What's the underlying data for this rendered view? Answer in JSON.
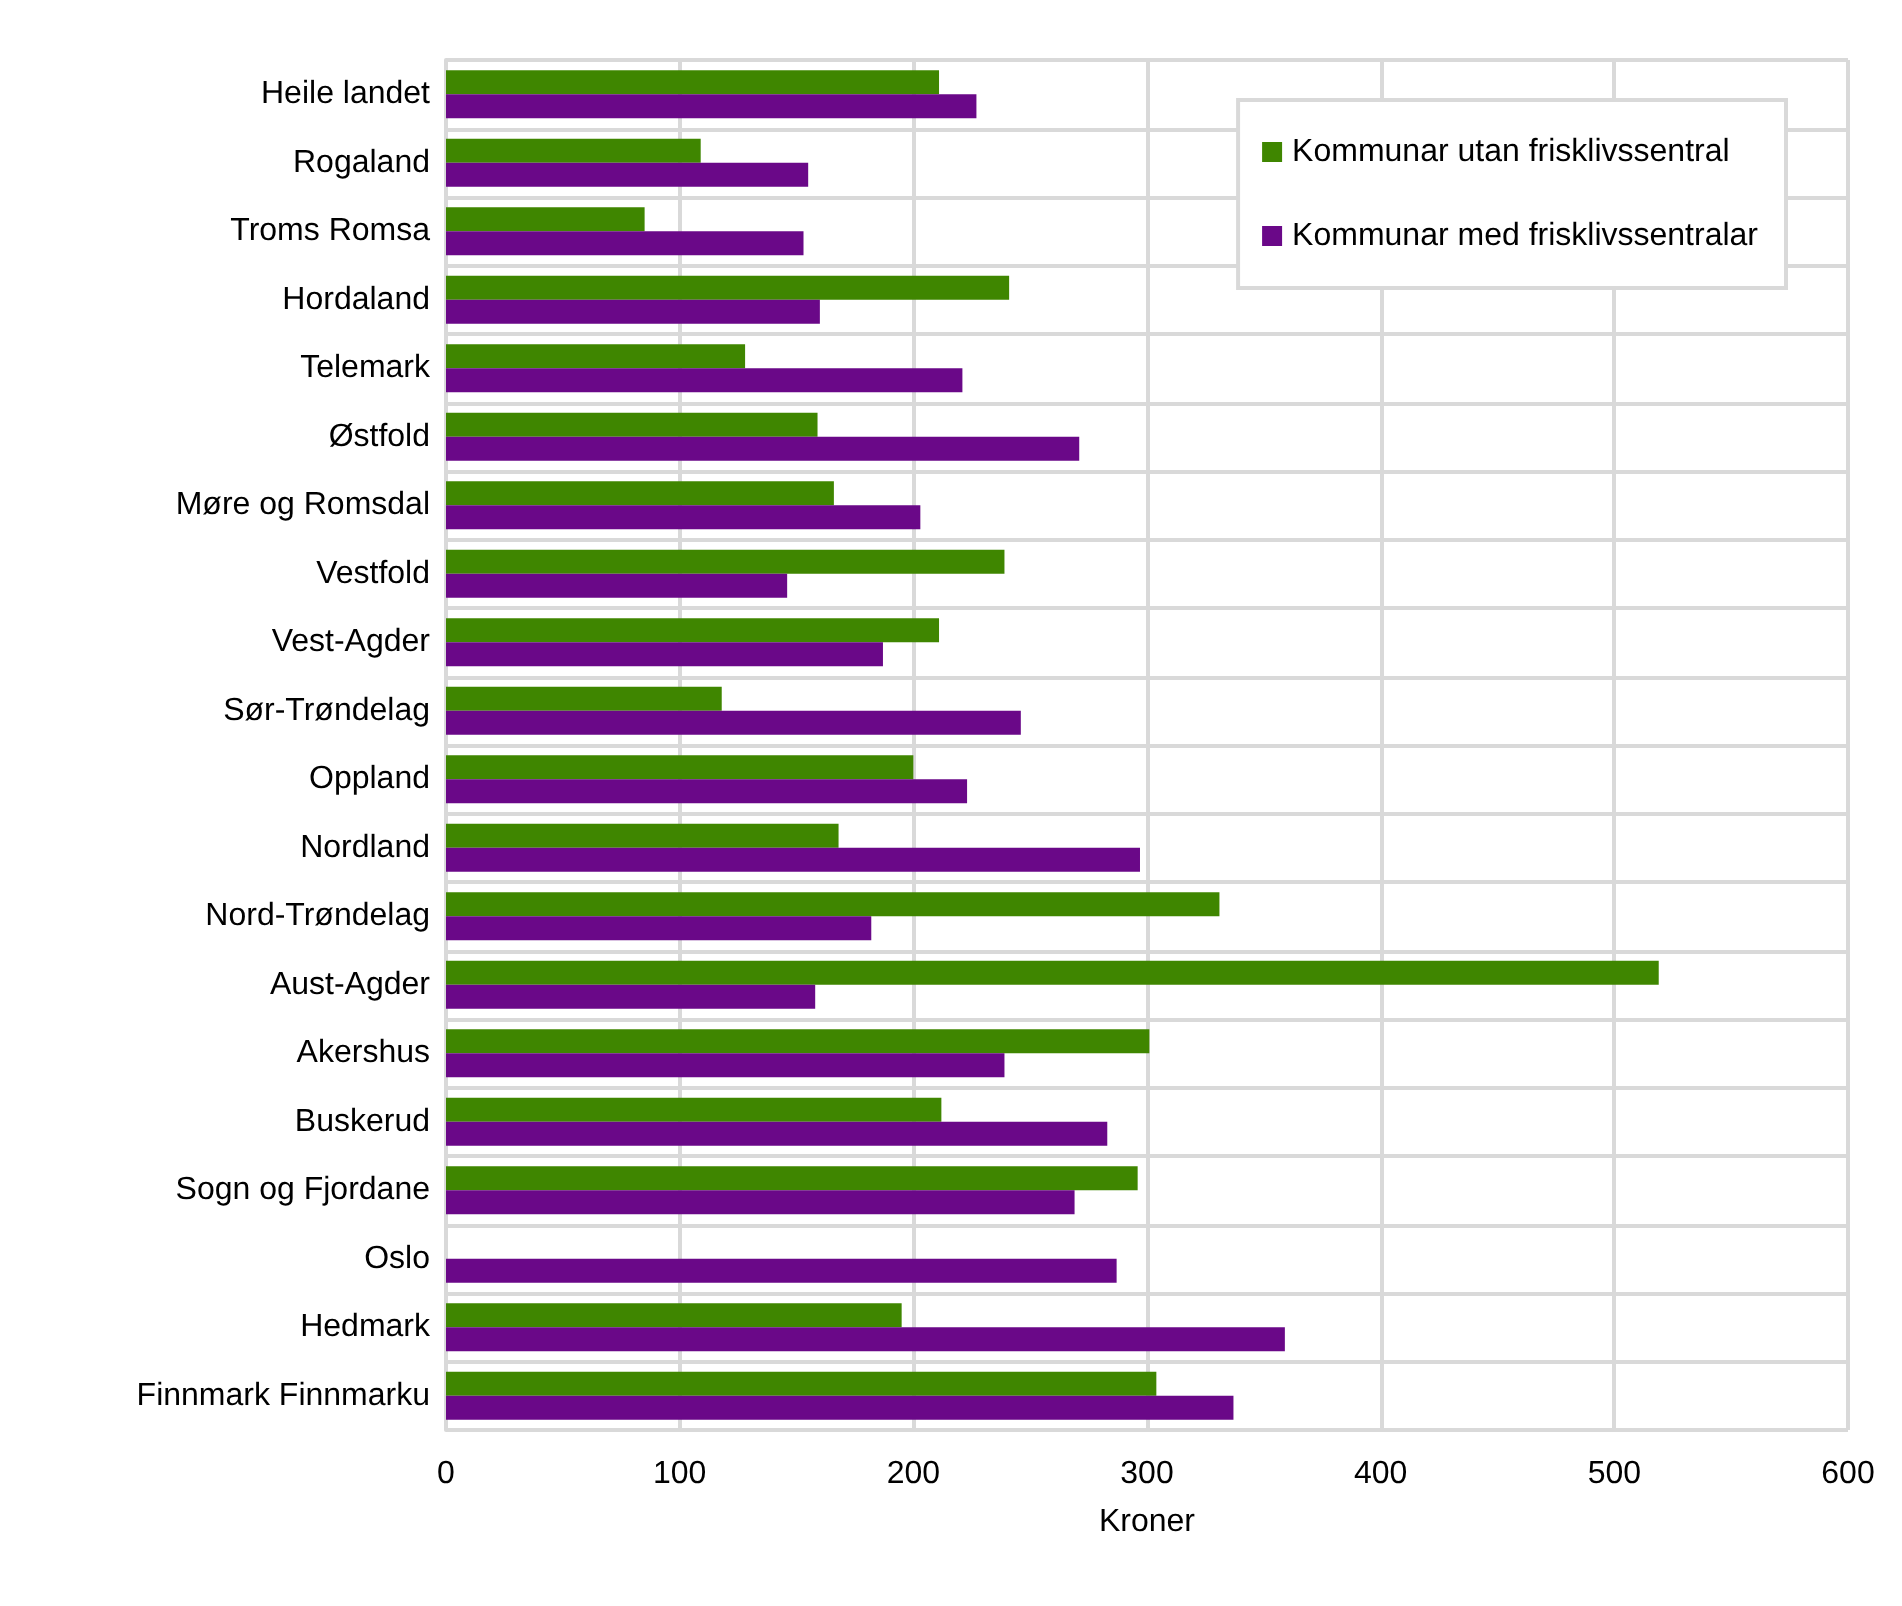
{
  "chart_data": {
    "type": "bar",
    "orientation": "horizontal",
    "xlabel": "Kroner",
    "categories": [
      "Heile landet",
      "Rogaland",
      "Troms Romsa",
      "Hordaland",
      "Telemark",
      "Østfold",
      "Møre og Romsdal",
      "Vestfold",
      "Vest-Agder",
      "Sør-Trøndelag",
      "Oppland",
      "Nordland",
      "Nord-Trøndelag",
      "Aust-Agder",
      "Akershus",
      "Buskerud",
      "Sogn og Fjordane",
      "Oslo",
      "Hedmark",
      "Finnmark Finnmarku"
    ],
    "series": [
      {
        "name": "Kommunar utan frisklivssentral",
        "color": "#3f8600",
        "values": [
          211,
          109,
          85,
          241,
          128,
          159,
          166,
          239,
          211,
          118,
          200,
          168,
          331,
          519,
          301,
          212,
          296,
          null,
          195,
          304
        ]
      },
      {
        "name": "Kommunar med frisklivssentralar",
        "color": "#6a0888",
        "values": [
          227,
          155,
          153,
          160,
          221,
          271,
          203,
          146,
          187,
          246,
          223,
          297,
          182,
          158,
          239,
          283,
          269,
          287,
          359,
          337
        ]
      }
    ],
    "xlim": [
      0,
      600
    ],
    "xticks": [
      0,
      100,
      200,
      300,
      400,
      500,
      600
    ],
    "grid": true,
    "legend": "top right"
  }
}
